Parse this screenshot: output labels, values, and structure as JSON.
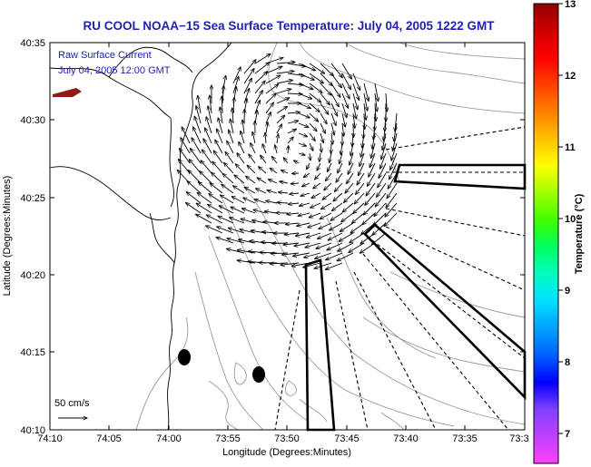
{
  "title": "RU COOL  NOAA−15  Sea Surface Temperature:  July 04, 2005 1222 GMT",
  "inset": {
    "line1": "Raw Surface Current",
    "line2": "July 04, 2005 12:00 GMT"
  },
  "axes": {
    "xlabel": "Longitude (Degrees:Minutes)",
    "ylabel": "Latitude (Degrees:Minutes)",
    "xticks": [
      "74:10",
      "74:05",
      "74:00",
      "73:55",
      "73:50",
      "73:45",
      "73:40",
      "73:35",
      "73:3"
    ],
    "yticks": [
      "40:35",
      "40:30",
      "40:25",
      "40:20",
      "40:15",
      "40:10"
    ]
  },
  "scale_label": "50 cm/s",
  "colorbar": {
    "label": "Temperature (°C)",
    "ticks": [
      "13",
      "12",
      "11",
      "10",
      "9",
      "8",
      "7"
    ],
    "colors": [
      "#ff40ff",
      "#c040ff",
      "#8040ff",
      "#0000ff",
      "#0060ff",
      "#00a0ff",
      "#00e0ff",
      "#00ffc0",
      "#00ff60",
      "#40ff00",
      "#a0ff00",
      "#ffff00",
      "#ffc000",
      "#ff8000",
      "#ff4000",
      "#ff0000",
      "#d00000",
      "#900000"
    ]
  },
  "colors": {
    "title": "#1f1fb3",
    "land_patch": "#8b1a1a",
    "contour": "#9a9a9a"
  }
}
